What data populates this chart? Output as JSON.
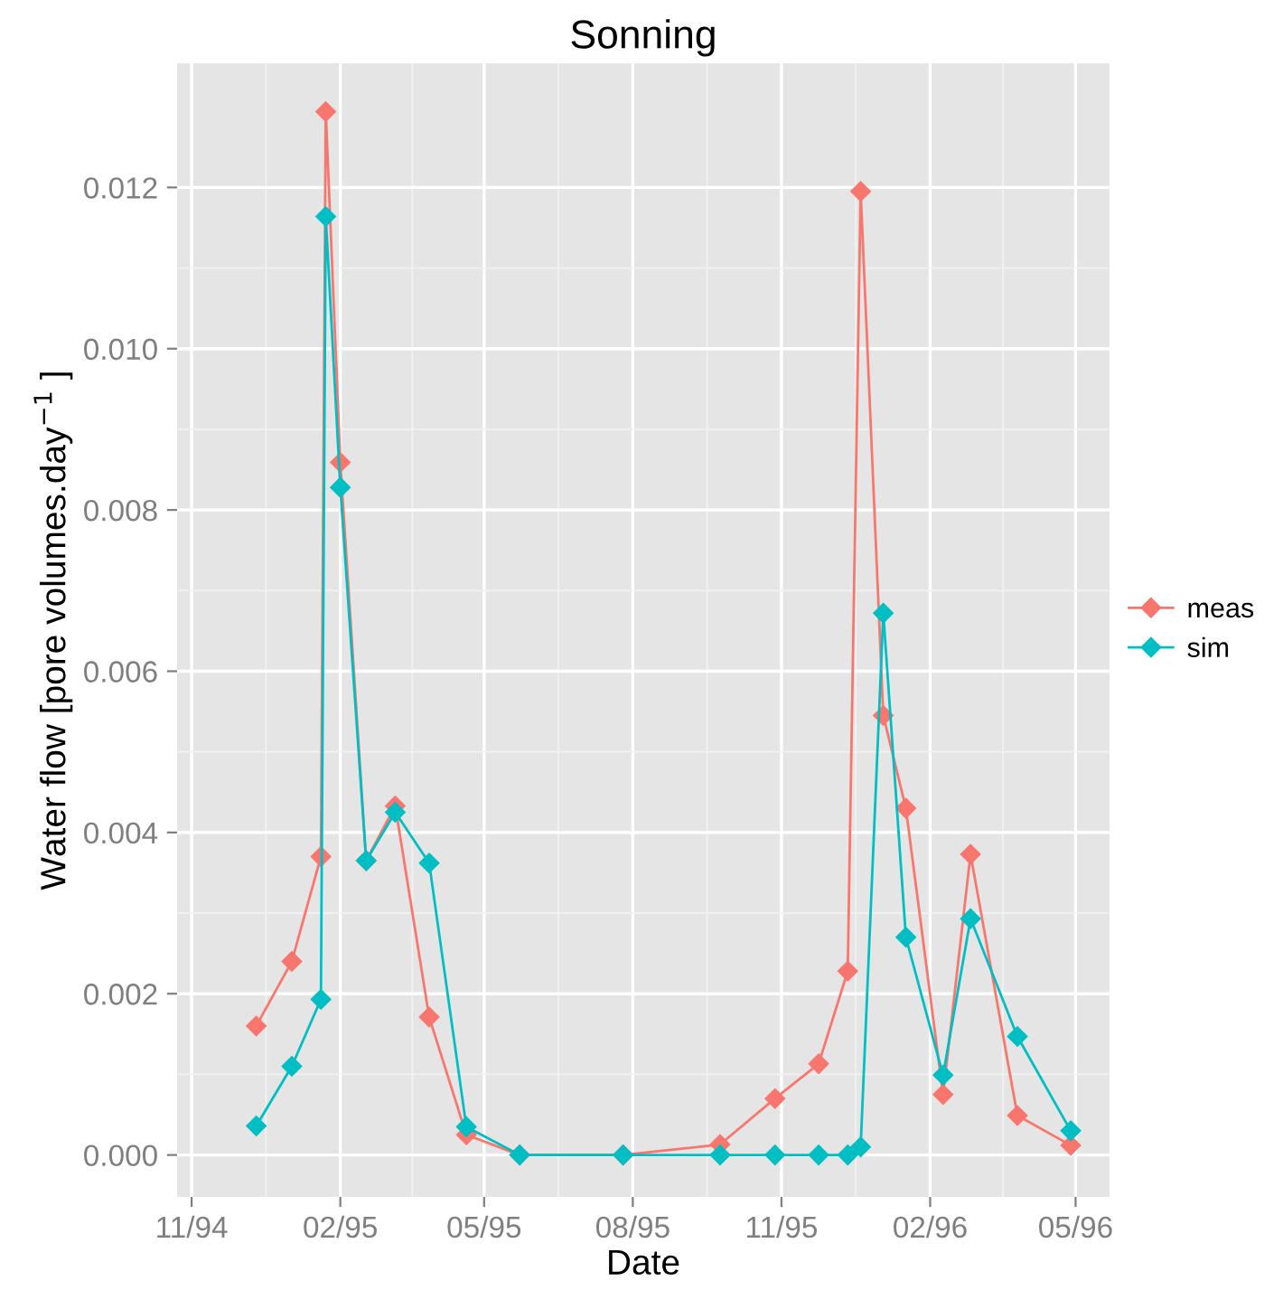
{
  "chart_data": {
    "type": "line",
    "title": "Sonning",
    "xlabel": "Date",
    "ylabel": "Water flow [pore volumes.day$^{−1}$ ]",
    "x": [
      "1994-12-11",
      "1995-01-02",
      "1995-01-20",
      "1995-01-23",
      "1995-02-01",
      "1995-02-17",
      "1995-03-07",
      "1995-03-28",
      "1995-04-20",
      "1995-05-23",
      "1995-07-26",
      "1995-09-24",
      "1995-10-28",
      "1995-11-24",
      "1995-12-12",
      "1995-12-20",
      "1996-01-03",
      "1996-01-17",
      "1996-02-09",
      "1996-02-26",
      "1996-03-26",
      "1996-04-28"
    ],
    "series": [
      {
        "name": "meas",
        "color": "#f8766d",
        "values": [
          0.0016,
          0.0024,
          0.0037,
          0.01294,
          0.00859,
          0.00365,
          0.00433,
          0.00171,
          0.00025,
          0,
          0,
          0.00013,
          0.0007,
          0.00113,
          0.00228,
          0.01195,
          0.00545,
          0.0043,
          0.00075,
          0.00373,
          0.00049,
          0.00012
        ]
      },
      {
        "name": "sim",
        "color": "#00bfc4",
        "values": [
          0.00036,
          0.0011,
          0.00193,
          0.01164,
          0.00828,
          0.00365,
          0.00425,
          0.00362,
          0.00035,
          0,
          0,
          0,
          0,
          0,
          0,
          0.0001,
          0.00672,
          0.0027,
          0.00099,
          0.00293,
          0.00147,
          0.0003
        ]
      }
    ],
    "xlim": [
      "1994-10-23",
      "1996-05-22"
    ],
    "xticks": [
      {
        "value": "1994-11-01",
        "label": "11/94"
      },
      {
        "value": "1995-02-01",
        "label": "02/95"
      },
      {
        "value": "1995-05-01",
        "label": "05/95"
      },
      {
        "value": "1995-08-01",
        "label": "08/95"
      },
      {
        "value": "1995-11-01",
        "label": "11/95"
      },
      {
        "value": "1996-02-01",
        "label": "02/96"
      },
      {
        "value": "1996-05-01",
        "label": "05/96"
      }
    ],
    "ylim": [
      -0.00052,
      0.01354
    ],
    "yticks": [
      {
        "value": 0,
        "label": "0.000"
      },
      {
        "value": 0.002,
        "label": "0.002"
      },
      {
        "value": 0.004,
        "label": "0.004"
      },
      {
        "value": 0.006,
        "label": "0.006"
      },
      {
        "value": 0.008,
        "label": "0.008"
      },
      {
        "value": 0.01,
        "label": "0.010"
      },
      {
        "value": 0.012,
        "label": "0.012"
      }
    ],
    "grid": true,
    "legend": "right",
    "marker": "diamond",
    "line_style": "solid"
  }
}
